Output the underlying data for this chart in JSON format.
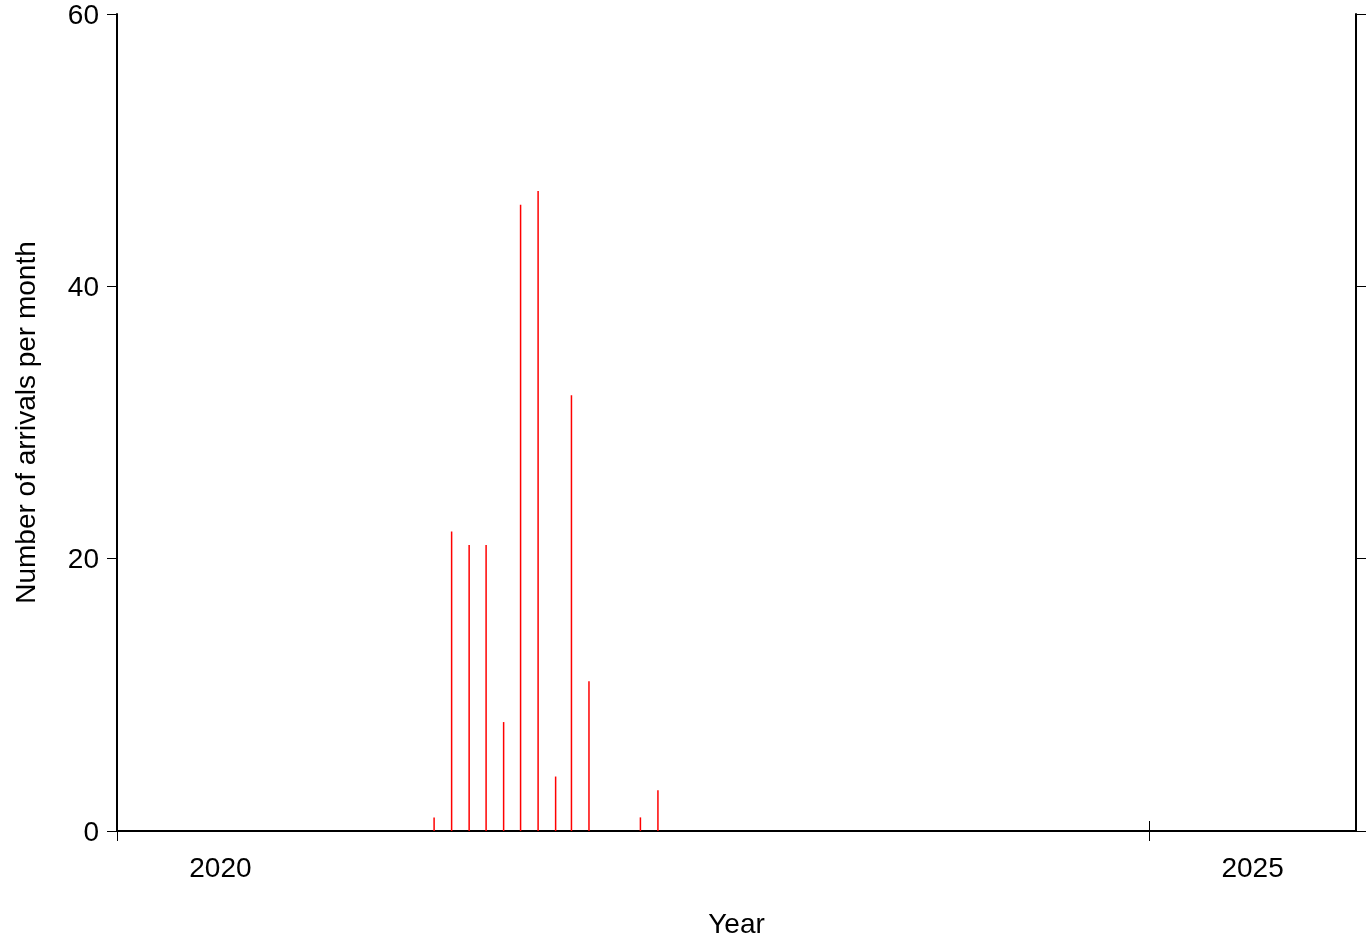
{
  "chart_data": {
    "type": "bar",
    "xlabel": "Year",
    "ylabel": "Number of arrivals per month",
    "x": [
      "2021-07-15",
      "2021-08-15",
      "2021-09-15",
      "2021-10-15",
      "2021-11-15",
      "2021-12-15",
      "2022-01-15",
      "2022-02-15",
      "2022-03-15",
      "2022-04-15",
      "2022-07-15",
      "2022-08-15"
    ],
    "values": [
      1,
      22,
      21,
      21,
      8,
      46,
      47,
      4,
      32,
      11,
      1,
      3
    ],
    "color": "#ff0000",
    "xlim": [
      "2020-01-01",
      "2026-01-01"
    ],
    "xticks": [
      {
        "value": "2020-01-01",
        "label": null
      },
      {
        "value": "2020-07-02",
        "label": "2020"
      },
      {
        "value": "2025-01-01",
        "label": null
      },
      {
        "value": "2025-07-02",
        "label": "2025"
      }
    ],
    "ylim": [
      0,
      60
    ],
    "yticks": [
      0,
      20,
      40,
      60
    ],
    "grid": false
  }
}
